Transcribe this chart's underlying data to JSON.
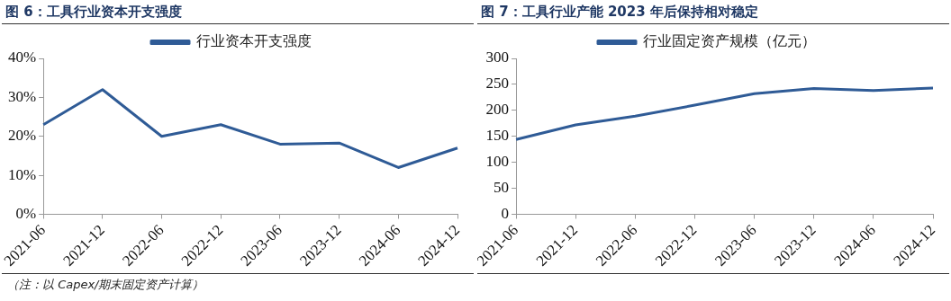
{
  "chart_data": [
    {
      "type": "line",
      "title": "图 6：工具行业资本开支强度",
      "categories": [
        "2021-06",
        "2021-12",
        "2022-06",
        "2022-12",
        "2023-06",
        "2023-12",
        "2024-06",
        "2024-12"
      ],
      "series": [
        {
          "name": "行业资本开支强度",
          "color": "#2f5b96",
          "values": [
            23,
            32,
            20,
            23,
            18,
            18.3,
            12,
            17
          ]
        }
      ],
      "ylim": [
        0,
        40
      ],
      "yticks": [
        {
          "value": 0,
          "label": "0%"
        },
        {
          "value": 10,
          "label": "10%"
        },
        {
          "value": 20,
          "label": "20%"
        },
        {
          "value": 30,
          "label": "30%"
        },
        {
          "value": 40,
          "label": "40%"
        }
      ],
      "legend": "top",
      "marker": "none",
      "line_style": "solid",
      "grid": false,
      "annotations": [
        "（注：以 Capex/期末固定资产计算）"
      ]
    },
    {
      "type": "line",
      "title": "图 7：工具行业产能 2023 年后保持相对稳定",
      "categories": [
        "2021-06",
        "2021-12",
        "2022-06",
        "2022-12",
        "2023-06",
        "2023-12",
        "2024-06",
        "2024-12"
      ],
      "series": [
        {
          "name": "行业固定资产规模（亿元）",
          "color": "#2f5b96",
          "values": [
            144,
            172,
            189,
            210,
            232,
            242,
            238,
            243
          ]
        }
      ],
      "ylim": [
        0,
        300
      ],
      "yticks": [
        0,
        50,
        100,
        150,
        200,
        250,
        300
      ],
      "legend": "top",
      "marker": "none",
      "line_style": "solid",
      "grid": false
    }
  ]
}
